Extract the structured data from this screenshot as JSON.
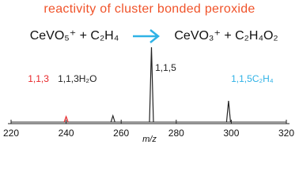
{
  "chart_data": {
    "type": "spectrum",
    "title": "reactivity of cluster bonded peroxide",
    "title_color": "#f0532a",
    "reactants": "CeVO₅⁺ + C₂H₄",
    "products": "CeVO₃⁺ + C₂H₄O₂",
    "arrow_color": "#2fb2e6",
    "x_label": "m/z",
    "x": [
      240,
      257,
      271,
      299
    ],
    "values": [
      7,
      8,
      95,
      27
    ],
    "peak_colors": [
      "#e8272a",
      "#222222",
      "#222222",
      "#222222"
    ],
    "peak_labels": [
      "1,1,3",
      "1,1,3H₂O",
      "1,1,5",
      "1,1,5C₂H₄"
    ],
    "peak_label_colors": [
      "#e8272a",
      "#222222",
      "#222222",
      "#2fb2e6"
    ],
    "xlim": [
      220,
      320
    ],
    "xticks": [
      220,
      240,
      260,
      280,
      300,
      320
    ],
    "ylim": [
      0,
      100
    ]
  }
}
